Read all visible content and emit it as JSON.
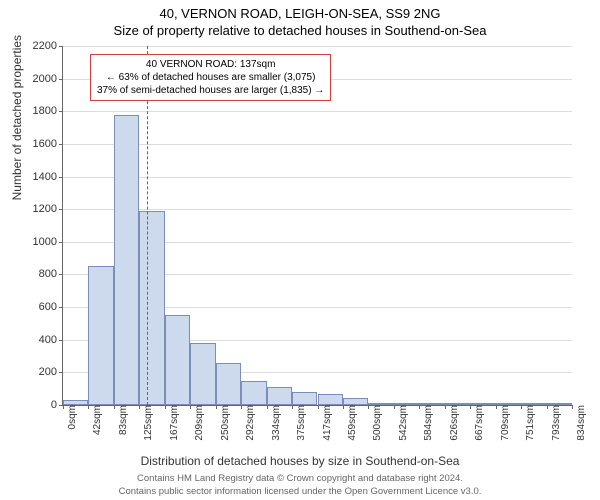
{
  "titles": {
    "main": "40, VERNON ROAD, LEIGH-ON-SEA, SS9 2NG",
    "sub": "Size of property relative to detached houses in Southend-on-Sea"
  },
  "axes": {
    "ylabel": "Number of detached properties",
    "xlabel": "Distribution of detached houses by size in Southend-on-Sea",
    "ylim": [
      0,
      2200
    ],
    "ytick_step": 200,
    "xticks": [
      "0sqm",
      "42sqm",
      "83sqm",
      "125sqm",
      "167sqm",
      "209sqm",
      "250sqm",
      "292sqm",
      "334sqm",
      "375sqm",
      "417sqm",
      "459sqm",
      "500sqm",
      "542sqm",
      "584sqm",
      "626sqm",
      "667sqm",
      "709sqm",
      "751sqm",
      "793sqm",
      "834sqm"
    ],
    "tick_fontsize": 10,
    "label_fontsize": 12
  },
  "histogram": {
    "type": "histogram",
    "bin_count": 20,
    "values": [
      30,
      850,
      1780,
      1190,
      550,
      380,
      260,
      150,
      110,
      80,
      70,
      40,
      10,
      5,
      5,
      5,
      2,
      2,
      2,
      1
    ],
    "bar_fill": "#cdd9ed",
    "bar_stroke": "#7a8fb5",
    "grid_color": "#dddddd",
    "axis_color": "#666666",
    "background": "#ffffff"
  },
  "marker": {
    "value_sqm": 137,
    "x_max_sqm": 834,
    "line_color": "#e03030",
    "box_border": "#d04040",
    "lines": {
      "l1": "40 VERNON ROAD: 137sqm",
      "l2": "← 63% of detached houses are smaller (3,075)",
      "l3": "37% of semi-detached houses are larger (1,835) →"
    }
  },
  "footer": {
    "l1": "Contains HM Land Registry data © Crown copyright and database right 2024.",
    "l2": "Contains public sector information licensed under the Open Government Licence v3.0."
  }
}
